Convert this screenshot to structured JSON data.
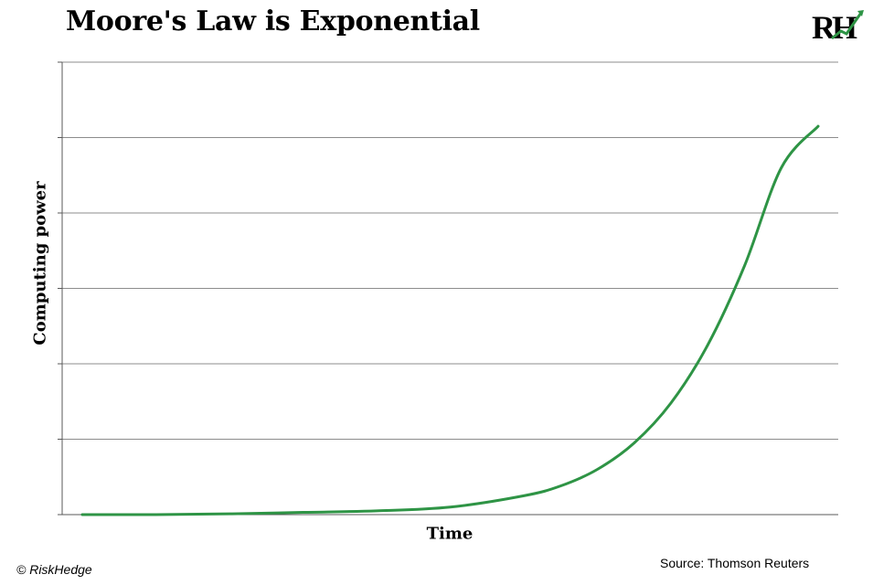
{
  "title": "Moore's Law is Exponential",
  "logo": {
    "text": "RH",
    "name": "riskhedge-logo"
  },
  "source": "Source: Thomson Reuters",
  "copyright": "© RiskHedge",
  "colors": {
    "line": "#2e9445",
    "grid": "#8c8c8c",
    "axis": "#595959"
  },
  "chart_data": {
    "type": "line",
    "title": "Moore's Law is Exponential",
    "xlabel": "Time",
    "ylabel": "Computing power",
    "ylim": [
      0,
      6
    ],
    "xlim": [
      0,
      1
    ],
    "grid": true,
    "gridlines_y": [
      1,
      2,
      3,
      4,
      5,
      6
    ],
    "tick_labels_shown": false,
    "legend": "none",
    "series": [
      {
        "x": [
          0.0,
          0.1,
          0.2,
          0.3,
          0.4,
          0.5,
          0.6,
          0.65,
          0.7,
          0.75,
          0.8,
          0.85,
          0.9,
          0.95,
          1.0
        ],
        "y": [
          0.0,
          0.0,
          0.01,
          0.03,
          0.05,
          0.1,
          0.25,
          0.38,
          0.6,
          0.95,
          1.48,
          2.25,
          3.3,
          4.6,
          5.15
        ]
      }
    ]
  }
}
